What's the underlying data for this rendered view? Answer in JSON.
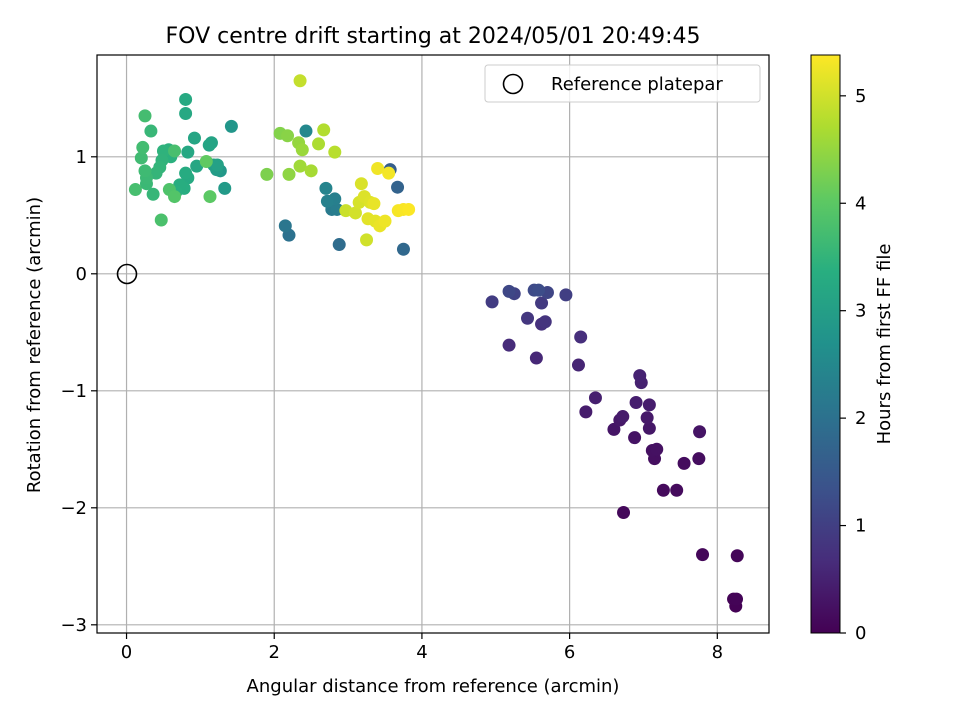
{
  "chart_data": {
    "type": "scatter",
    "title": "FOV centre drift starting at 2024/05/01 20:49:45",
    "xlabel": "Angular distance from reference (arcmin)",
    "ylabel": "Rotation from reference (arcmin)",
    "xlim": [
      -0.4,
      8.7
    ],
    "ylim": [
      -3.07,
      1.87
    ],
    "xticks": [
      0,
      2,
      4,
      6,
      8
    ],
    "yticks": [
      -3,
      -2,
      -1,
      0,
      1
    ],
    "grid": true,
    "legend": {
      "placement": "top-right",
      "entries": [
        "Reference platepar"
      ]
    },
    "reference_point": {
      "x": 0,
      "y": 0
    },
    "colorbar": {
      "label": "Hours from first FF file",
      "range": [
        0,
        5.38
      ],
      "ticks": [
        0,
        1,
        2,
        3,
        4,
        5
      ],
      "colormap": "viridis"
    },
    "points": [
      {
        "x": 8.25,
        "y": -2.84,
        "c": 0.02
      },
      {
        "x": 8.22,
        "y": -2.78,
        "c": 0.04
      },
      {
        "x": 8.26,
        "y": -2.78,
        "c": 0.05
      },
      {
        "x": 8.27,
        "y": -2.41,
        "c": 0.07
      },
      {
        "x": 7.8,
        "y": -2.4,
        "c": 0.09
      },
      {
        "x": 6.73,
        "y": -2.04,
        "c": 0.11
      },
      {
        "x": 7.27,
        "y": -1.85,
        "c": 0.13
      },
      {
        "x": 7.45,
        "y": -1.85,
        "c": 0.15
      },
      {
        "x": 7.55,
        "y": -1.62,
        "c": 0.17
      },
      {
        "x": 7.75,
        "y": -1.58,
        "c": 0.19
      },
      {
        "x": 7.15,
        "y": -1.58,
        "c": 0.21
      },
      {
        "x": 7.12,
        "y": -1.51,
        "c": 0.23
      },
      {
        "x": 7.18,
        "y": -1.5,
        "c": 0.25
      },
      {
        "x": 6.88,
        "y": -1.4,
        "c": 0.27
      },
      {
        "x": 7.76,
        "y": -1.35,
        "c": 0.29
      },
      {
        "x": 6.6,
        "y": -1.33,
        "c": 0.31
      },
      {
        "x": 7.08,
        "y": -1.32,
        "c": 0.33
      },
      {
        "x": 6.68,
        "y": -1.25,
        "c": 0.35
      },
      {
        "x": 7.05,
        "y": -1.23,
        "c": 0.37
      },
      {
        "x": 6.72,
        "y": -1.22,
        "c": 0.39
      },
      {
        "x": 6.22,
        "y": -1.18,
        "c": 0.41
      },
      {
        "x": 7.08,
        "y": -1.12,
        "c": 0.43
      },
      {
        "x": 6.9,
        "y": -1.1,
        "c": 0.45
      },
      {
        "x": 6.35,
        "y": -1.06,
        "c": 0.47
      },
      {
        "x": 6.97,
        "y": -0.93,
        "c": 0.49
      },
      {
        "x": 6.95,
        "y": -0.87,
        "c": 0.51
      },
      {
        "x": 6.12,
        "y": -0.78,
        "c": 0.55
      },
      {
        "x": 5.55,
        "y": -0.72,
        "c": 0.6
      },
      {
        "x": 5.18,
        "y": -0.61,
        "c": 0.65
      },
      {
        "x": 6.15,
        "y": -0.54,
        "c": 0.7
      },
      {
        "x": 5.62,
        "y": -0.43,
        "c": 0.75
      },
      {
        "x": 5.67,
        "y": -0.41,
        "c": 0.8
      },
      {
        "x": 5.43,
        "y": -0.38,
        "c": 0.85
      },
      {
        "x": 5.62,
        "y": -0.25,
        "c": 0.9
      },
      {
        "x": 4.95,
        "y": -0.24,
        "c": 0.95
      },
      {
        "x": 5.95,
        "y": -0.18,
        "c": 1.0
      },
      {
        "x": 5.25,
        "y": -0.17,
        "c": 1.05
      },
      {
        "x": 5.7,
        "y": -0.16,
        "c": 1.1
      },
      {
        "x": 5.18,
        "y": -0.15,
        "c": 1.15
      },
      {
        "x": 5.52,
        "y": -0.14,
        "c": 1.2
      },
      {
        "x": 5.58,
        "y": -0.14,
        "c": 1.25
      },
      {
        "x": 3.57,
        "y": 0.89,
        "c": 1.6
      },
      {
        "x": 3.67,
        "y": 0.74,
        "c": 1.7
      },
      {
        "x": 3.75,
        "y": 0.21,
        "c": 1.8
      },
      {
        "x": 2.88,
        "y": 0.25,
        "c": 1.9
      },
      {
        "x": 2.2,
        "y": 0.33,
        "c": 2.0
      },
      {
        "x": 2.15,
        "y": 0.41,
        "c": 2.1
      },
      {
        "x": 2.78,
        "y": 0.55,
        "c": 2.2
      },
      {
        "x": 2.85,
        "y": 0.55,
        "c": 2.25
      },
      {
        "x": 2.82,
        "y": 0.64,
        "c": 2.3
      },
      {
        "x": 2.72,
        "y": 0.62,
        "c": 2.35
      },
      {
        "x": 2.7,
        "y": 0.73,
        "c": 2.4
      },
      {
        "x": 2.43,
        "y": 1.22,
        "c": 2.5
      },
      {
        "x": 1.42,
        "y": 1.26,
        "c": 2.8
      },
      {
        "x": 1.27,
        "y": 0.88,
        "c": 2.85
      },
      {
        "x": 1.33,
        "y": 0.73,
        "c": 2.9
      },
      {
        "x": 1.22,
        "y": 0.89,
        "c": 2.95
      },
      {
        "x": 1.18,
        "y": 0.93,
        "c": 3.0
      },
      {
        "x": 1.23,
        "y": 0.93,
        "c": 3.05
      },
      {
        "x": 1.15,
        "y": 1.12,
        "c": 3.1
      },
      {
        "x": 1.12,
        "y": 1.1,
        "c": 3.12
      },
      {
        "x": 0.92,
        "y": 1.16,
        "c": 3.15
      },
      {
        "x": 0.95,
        "y": 0.92,
        "c": 3.18
      },
      {
        "x": 0.83,
        "y": 1.04,
        "c": 3.2
      },
      {
        "x": 0.8,
        "y": 1.37,
        "c": 3.22
      },
      {
        "x": 0.8,
        "y": 1.49,
        "c": 3.25
      },
      {
        "x": 0.83,
        "y": 0.82,
        "c": 3.27
      },
      {
        "x": 0.8,
        "y": 0.86,
        "c": 3.3
      },
      {
        "x": 0.78,
        "y": 0.73,
        "c": 3.33
      },
      {
        "x": 0.72,
        "y": 0.76,
        "c": 3.35
      },
      {
        "x": 0.67,
        "y": 0.7,
        "c": 3.37
      },
      {
        "x": 0.6,
        "y": 1.0,
        "c": 3.4
      },
      {
        "x": 0.57,
        "y": 1.06,
        "c": 3.42
      },
      {
        "x": 0.5,
        "y": 1.05,
        "c": 3.45
      },
      {
        "x": 0.48,
        "y": 0.97,
        "c": 3.47
      },
      {
        "x": 0.45,
        "y": 0.91,
        "c": 3.5
      },
      {
        "x": 0.4,
        "y": 0.86,
        "c": 3.52
      },
      {
        "x": 0.36,
        "y": 0.68,
        "c": 3.55
      },
      {
        "x": 0.33,
        "y": 1.22,
        "c": 3.57
      },
      {
        "x": 0.27,
        "y": 0.77,
        "c": 3.6
      },
      {
        "x": 0.27,
        "y": 0.82,
        "c": 3.62
      },
      {
        "x": 0.25,
        "y": 0.88,
        "c": 3.65
      },
      {
        "x": 0.2,
        "y": 0.99,
        "c": 3.67
      },
      {
        "x": 0.22,
        "y": 1.08,
        "c": 3.7
      },
      {
        "x": 0.25,
        "y": 1.35,
        "c": 3.72
      },
      {
        "x": 0.12,
        "y": 0.72,
        "c": 3.75
      },
      {
        "x": 0.65,
        "y": 1.05,
        "c": 3.77
      },
      {
        "x": 0.47,
        "y": 0.46,
        "c": 3.8
      },
      {
        "x": 0.58,
        "y": 0.72,
        "c": 3.85
      },
      {
        "x": 0.65,
        "y": 0.66,
        "c": 3.9
      },
      {
        "x": 1.13,
        "y": 0.66,
        "c": 4.0
      },
      {
        "x": 1.08,
        "y": 0.96,
        "c": 4.05
      },
      {
        "x": 1.9,
        "y": 0.85,
        "c": 4.3
      },
      {
        "x": 2.08,
        "y": 1.2,
        "c": 4.35
      },
      {
        "x": 2.18,
        "y": 1.18,
        "c": 4.4
      },
      {
        "x": 2.2,
        "y": 0.85,
        "c": 4.45
      },
      {
        "x": 2.33,
        "y": 1.12,
        "c": 4.5
      },
      {
        "x": 2.38,
        "y": 1.06,
        "c": 4.55
      },
      {
        "x": 2.35,
        "y": 0.92,
        "c": 4.6
      },
      {
        "x": 2.5,
        "y": 0.88,
        "c": 4.65
      },
      {
        "x": 2.6,
        "y": 1.11,
        "c": 4.7
      },
      {
        "x": 2.67,
        "y": 1.23,
        "c": 4.75
      },
      {
        "x": 2.82,
        "y": 1.04,
        "c": 4.8
      },
      {
        "x": 2.35,
        "y": 1.65,
        "c": 4.9
      },
      {
        "x": 2.97,
        "y": 0.54,
        "c": 4.95
      },
      {
        "x": 3.25,
        "y": 0.29,
        "c": 5.0
      },
      {
        "x": 3.1,
        "y": 0.52,
        "c": 5.02
      },
      {
        "x": 3.15,
        "y": 0.61,
        "c": 5.05
      },
      {
        "x": 3.18,
        "y": 0.77,
        "c": 5.08
      },
      {
        "x": 3.22,
        "y": 0.66,
        "c": 5.1
      },
      {
        "x": 3.3,
        "y": 0.61,
        "c": 5.12
      },
      {
        "x": 3.27,
        "y": 0.47,
        "c": 5.15
      },
      {
        "x": 3.37,
        "y": 0.45,
        "c": 5.17
      },
      {
        "x": 3.35,
        "y": 0.6,
        "c": 5.2
      },
      {
        "x": 3.43,
        "y": 0.41,
        "c": 5.22
      },
      {
        "x": 3.5,
        "y": 0.45,
        "c": 5.25
      },
      {
        "x": 3.4,
        "y": 0.9,
        "c": 5.27
      },
      {
        "x": 3.55,
        "y": 0.86,
        "c": 5.3
      },
      {
        "x": 3.68,
        "y": 0.54,
        "c": 5.32
      },
      {
        "x": 3.75,
        "y": 0.55,
        "c": 5.34
      },
      {
        "x": 3.82,
        "y": 0.55,
        "c": 5.36
      }
    ]
  }
}
